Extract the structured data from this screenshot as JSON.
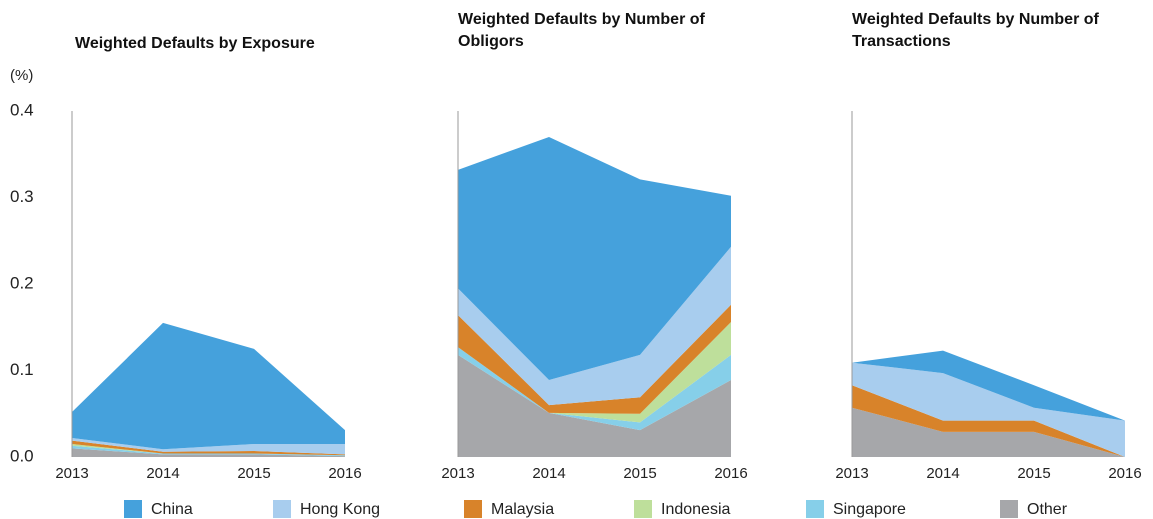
{
  "chart_data": [
    {
      "type": "area",
      "title": "Weighted Defaults by Exposure",
      "y_label": "(%)",
      "categories": [
        "2013",
        "2014",
        "2015",
        "2016"
      ],
      "ylim": [
        0,
        0.4
      ],
      "yticks": [
        {
          "value": 0,
          "label": "0.0"
        },
        0.1,
        0.2,
        0.3,
        0.4
      ],
      "series": [
        {
          "name": "Other",
          "color": "#a6a7aa",
          "values": [
            0.01,
            0.003,
            0.003,
            0.001
          ]
        },
        {
          "name": "Singapore",
          "color": "#86cfe9",
          "values": [
            0.003,
            0.001,
            0.001,
            0.001
          ]
        },
        {
          "name": "Indonesia",
          "color": "#bedf9b",
          "values": [
            0.002,
            0,
            0,
            0
          ]
        },
        {
          "name": "Malaysia",
          "color": "#d8832a",
          "values": [
            0.004,
            0.002,
            0.003,
            0.001
          ]
        },
        {
          "name": "Hong Kong",
          "color": "#a8cdee",
          "values": [
            0.003,
            0.003,
            0.008,
            0.012
          ]
        },
        {
          "name": "China",
          "color": "#45a1dc",
          "values": [
            0.03,
            0.146,
            0.11,
            0.016
          ]
        }
      ]
    },
    {
      "type": "area",
      "title": "Weighted Defaults by Number of Obligors",
      "categories": [
        "2013",
        "2014",
        "2015",
        "2016"
      ],
      "series": [
        {
          "values": [
            0.118,
            0.051,
            0.031,
            0.089
          ]
        },
        {
          "values": [
            0.009,
            0,
            0.009,
            0.029
          ]
        },
        {
          "values": [
            0,
            0,
            0.01,
            0.038
          ]
        },
        {
          "values": [
            0.037,
            0.009,
            0.019,
            0.02
          ]
        },
        {
          "values": [
            0.031,
            0.029,
            0.049,
            0.067
          ]
        },
        {
          "values": [
            0.137,
            0.281,
            0.203,
            0.059
          ]
        }
      ]
    },
    {
      "type": "area",
      "title": "Weighted Defaults by Number of Transactions",
      "categories": [
        "2013",
        "2014",
        "2015",
        "2016"
      ],
      "series": [
        {
          "values": [
            0.057,
            0.029,
            0.029,
            0
          ]
        },
        {
          "values": [
            0,
            0,
            0,
            0
          ]
        },
        {
          "values": [
            0,
            0,
            0,
            0
          ]
        },
        {
          "values": [
            0.026,
            0.013,
            0.013,
            0
          ]
        },
        {
          "values": [
            0.026,
            0.055,
            0.015,
            0.042
          ]
        },
        {
          "values": [
            0,
            0.026,
            0.026,
            0
          ]
        }
      ]
    }
  ]
}
